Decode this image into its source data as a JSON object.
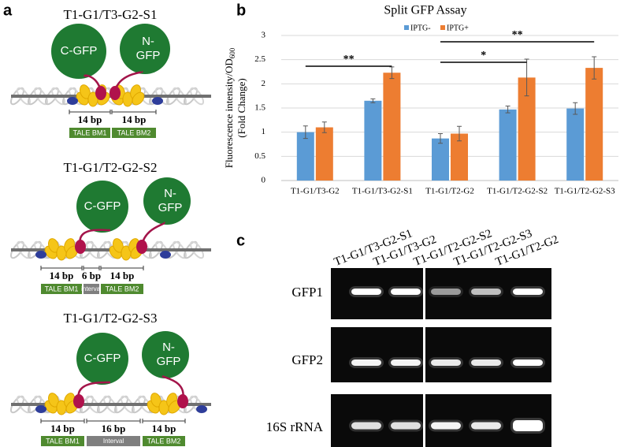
{
  "panel_a": {
    "label": "a",
    "diagrams": [
      {
        "title": "T1-G1/T3-G2-S1",
        "c_gfp": "C-GFP",
        "n_gfp": [
          "N-",
          "GFP"
        ],
        "spacers": [
          "14 bp",
          "14 bp"
        ],
        "boxes": [
          "TALE BM1",
          "TALE BM2"
        ]
      },
      {
        "title": "T1-G1/T2-G2-S2",
        "c_gfp": "C-GFP",
        "n_gfp": [
          "N-",
          "GFP"
        ],
        "spacers": [
          "14 bp",
          "6 bp",
          "14 bp"
        ],
        "boxes": [
          "TALE BM1",
          "interval",
          "TALE BM2"
        ]
      },
      {
        "title": "T1-G1/T2-G2-S3",
        "c_gfp": "C-GFP",
        "n_gfp": [
          "N-",
          "GFP"
        ],
        "spacers": [
          "14 bp",
          "16 bp",
          "14 bp"
        ],
        "boxes": [
          "TALE BM1",
          "Interval",
          "TALE BM2"
        ]
      }
    ]
  },
  "panel_b_label": "b",
  "chart_data": {
    "type": "bar",
    "title": "Split GFP Assay",
    "y_label": [
      "Fluorescence intensity/OD",
      "600",
      "(Fold Change)"
    ],
    "categories": [
      "T1-G1/T3-G2",
      "T1-G1/T3-G2-S1",
      "T1-G1/T2-G2",
      "T1-G1/T2-G2-S2",
      "T1-G1/T2-G2-S3"
    ],
    "series": [
      {
        "name": "IPTG-",
        "color": "#5b9bd5",
        "values": [
          1.0,
          1.65,
          0.87,
          1.47,
          1.49
        ],
        "errors": [
          0.13,
          0.04,
          0.1,
          0.07,
          0.12
        ]
      },
      {
        "name": "IPTG+",
        "color": "#ed7d31",
        "values": [
          1.1,
          2.23,
          0.97,
          2.13,
          2.33
        ],
        "errors": [
          0.11,
          0.12,
          0.15,
          0.38,
          0.23
        ]
      }
    ],
    "ylim": [
      0,
      3
    ],
    "yticks": [
      0,
      0.5,
      1,
      1.5,
      2,
      2.5,
      3
    ],
    "grid": true,
    "legend": "top",
    "annotations": [
      "**",
      "*",
      "**"
    ]
  },
  "panel_c": {
    "label": "c",
    "lanes": [
      "T1-G1/T3-G2-S1",
      "T1-G1/T3-G2",
      "T1-G1/T2-G2-S2",
      "T1-G1/T2-G2-S3",
      "T1-G1/T2-G2"
    ],
    "rows": [
      "GFP1",
      "GFP2",
      "16S rRNA"
    ]
  }
}
